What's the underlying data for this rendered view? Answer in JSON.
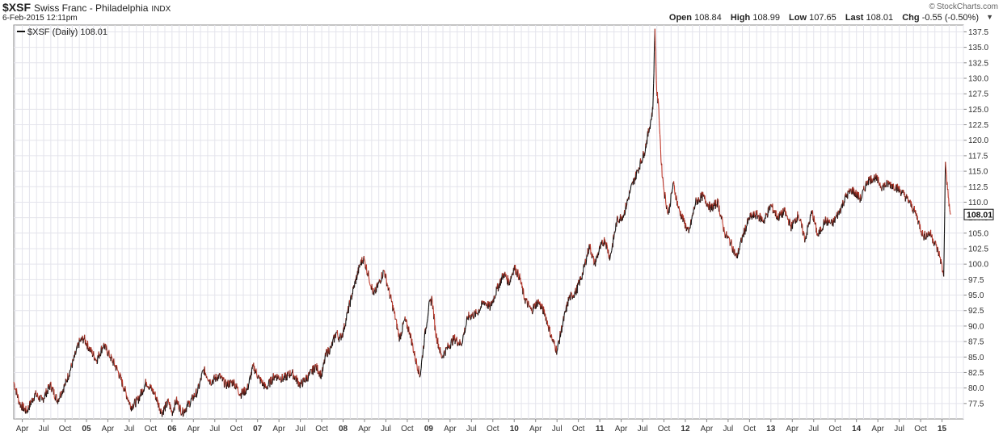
{
  "header": {
    "symbol": "$XSF",
    "name": "Swiss Franc - Philadelphia",
    "exchange": "INDX",
    "datetime": "6-Feb-2015 12:11pm",
    "source": "StockCharts.com",
    "copyright_symbol": "©",
    "ohlc": {
      "open_label": "Open",
      "open": "108.84",
      "high_label": "High",
      "high": "108.99",
      "low_label": "Low",
      "low": "107.65",
      "last_label": "Last",
      "last": "108.01",
      "chg_label": "Chg",
      "chg": "-0.55 (-0.50%)"
    },
    "menu_icon": "caret-down-icon"
  },
  "chart_data": {
    "type": "line",
    "legend": {
      "label": "$XSF (Daily) 108.01",
      "placement": "top-left"
    },
    "last_value_label": "108.01",
    "colors": {
      "up": "#111111",
      "down": "#c0392b",
      "grid": "#e4e4ec",
      "axis": "#888888"
    },
    "grid": true,
    "ylim": [
      75,
      138.6
    ],
    "xlim": [
      2004.15,
      2015.25
    ],
    "y_ticks": [
      "77.5",
      "80.0",
      "82.5",
      "85.0",
      "87.5",
      "90.0",
      "92.5",
      "95.0",
      "97.5",
      "100.0",
      "102.5",
      "105.0",
      "107.5",
      "110.0",
      "112.5",
      "115.0",
      "117.5",
      "120.0",
      "122.5",
      "125.0",
      "127.5",
      "130.0",
      "132.5",
      "135.0",
      "137.5"
    ],
    "x_ticks": [
      {
        "t": 2004.25,
        "label": "Apr",
        "bold": false
      },
      {
        "t": 2004.5,
        "label": "Jul",
        "bold": false
      },
      {
        "t": 2004.75,
        "label": "Oct",
        "bold": false
      },
      {
        "t": 2005.0,
        "label": "05",
        "bold": true
      },
      {
        "t": 2005.25,
        "label": "Apr",
        "bold": false
      },
      {
        "t": 2005.5,
        "label": "Jul",
        "bold": false
      },
      {
        "t": 2005.75,
        "label": "Oct",
        "bold": false
      },
      {
        "t": 2006.0,
        "label": "06",
        "bold": true
      },
      {
        "t": 2006.25,
        "label": "Apr",
        "bold": false
      },
      {
        "t": 2006.5,
        "label": "Jul",
        "bold": false
      },
      {
        "t": 2006.75,
        "label": "Oct",
        "bold": false
      },
      {
        "t": 2007.0,
        "label": "07",
        "bold": true
      },
      {
        "t": 2007.25,
        "label": "Apr",
        "bold": false
      },
      {
        "t": 2007.5,
        "label": "Jul",
        "bold": false
      },
      {
        "t": 2007.75,
        "label": "Oct",
        "bold": false
      },
      {
        "t": 2008.0,
        "label": "08",
        "bold": true
      },
      {
        "t": 2008.25,
        "label": "Apr",
        "bold": false
      },
      {
        "t": 2008.5,
        "label": "Jul",
        "bold": false
      },
      {
        "t": 2008.75,
        "label": "Oct",
        "bold": false
      },
      {
        "t": 2009.0,
        "label": "09",
        "bold": true
      },
      {
        "t": 2009.25,
        "label": "Apr",
        "bold": false
      },
      {
        "t": 2009.5,
        "label": "Jul",
        "bold": false
      },
      {
        "t": 2009.75,
        "label": "Oct",
        "bold": false
      },
      {
        "t": 2010.0,
        "label": "10",
        "bold": true
      },
      {
        "t": 2010.25,
        "label": "Apr",
        "bold": false
      },
      {
        "t": 2010.5,
        "label": "Jul",
        "bold": false
      },
      {
        "t": 2010.75,
        "label": "Oct",
        "bold": false
      },
      {
        "t": 2011.0,
        "label": "11",
        "bold": true
      },
      {
        "t": 2011.25,
        "label": "Apr",
        "bold": false
      },
      {
        "t": 2011.5,
        "label": "Jul",
        "bold": false
      },
      {
        "t": 2011.75,
        "label": "Oct",
        "bold": false
      },
      {
        "t": 2012.0,
        "label": "12",
        "bold": true
      },
      {
        "t": 2012.25,
        "label": "Apr",
        "bold": false
      },
      {
        "t": 2012.5,
        "label": "Jul",
        "bold": false
      },
      {
        "t": 2012.75,
        "label": "Oct",
        "bold": false
      },
      {
        "t": 2013.0,
        "label": "13",
        "bold": true
      },
      {
        "t": 2013.25,
        "label": "Apr",
        "bold": false
      },
      {
        "t": 2013.5,
        "label": "Jul",
        "bold": false
      },
      {
        "t": 2013.75,
        "label": "Oct",
        "bold": false
      },
      {
        "t": 2014.0,
        "label": "14",
        "bold": true
      },
      {
        "t": 2014.25,
        "label": "Apr",
        "bold": false
      },
      {
        "t": 2014.5,
        "label": "Jul",
        "bold": false
      },
      {
        "t": 2014.75,
        "label": "Oct",
        "bold": false
      },
      {
        "t": 2015.0,
        "label": "15",
        "bold": true
      }
    ],
    "series": [
      {
        "name": "$XSF (Daily)",
        "points": [
          [
            2004.15,
            81.0
          ],
          [
            2004.22,
            77.5
          ],
          [
            2004.3,
            76.2
          ],
          [
            2004.4,
            79.0
          ],
          [
            2004.48,
            78.0
          ],
          [
            2004.58,
            80.5
          ],
          [
            2004.66,
            78.0
          ],
          [
            2004.75,
            80.5
          ],
          [
            2004.85,
            84.5
          ],
          [
            2004.92,
            87.5
          ],
          [
            2004.97,
            88.0
          ],
          [
            2005.05,
            86.0
          ],
          [
            2005.12,
            84.5
          ],
          [
            2005.2,
            87.0
          ],
          [
            2005.28,
            85.0
          ],
          [
            2005.36,
            83.0
          ],
          [
            2005.44,
            80.0
          ],
          [
            2005.52,
            77.0
          ],
          [
            2005.6,
            78.0
          ],
          [
            2005.7,
            81.0
          ],
          [
            2005.8,
            79.0
          ],
          [
            2005.88,
            76.0
          ],
          [
            2005.96,
            77.8
          ],
          [
            2006.0,
            76.0
          ],
          [
            2006.05,
            78.0
          ],
          [
            2006.12,
            76.0
          ],
          [
            2006.2,
            77.5
          ],
          [
            2006.3,
            79.5
          ],
          [
            2006.37,
            83.0
          ],
          [
            2006.45,
            81.0
          ],
          [
            2006.55,
            82.0
          ],
          [
            2006.63,
            80.5
          ],
          [
            2006.72,
            81.0
          ],
          [
            2006.8,
            79.0
          ],
          [
            2006.88,
            79.8
          ],
          [
            2006.95,
            83.5
          ],
          [
            2007.02,
            81.5
          ],
          [
            2007.1,
            80.0
          ],
          [
            2007.2,
            82.0
          ],
          [
            2007.3,
            81.5
          ],
          [
            2007.4,
            82.5
          ],
          [
            2007.5,
            80.5
          ],
          [
            2007.6,
            82.0
          ],
          [
            2007.68,
            83.5
          ],
          [
            2007.75,
            82.0
          ],
          [
            2007.8,
            85.5
          ],
          [
            2007.86,
            86.5
          ],
          [
            2007.92,
            89.0
          ],
          [
            2007.96,
            88.0
          ],
          [
            2008.0,
            89.0
          ],
          [
            2008.05,
            92.0
          ],
          [
            2008.12,
            96.0
          ],
          [
            2008.2,
            100.0
          ],
          [
            2008.24,
            101.0
          ],
          [
            2008.3,
            98.0
          ],
          [
            2008.36,
            95.0
          ],
          [
            2008.42,
            97.0
          ],
          [
            2008.48,
            99.0
          ],
          [
            2008.53,
            96.0
          ],
          [
            2008.6,
            92.0
          ],
          [
            2008.66,
            88.0
          ],
          [
            2008.72,
            91.0
          ],
          [
            2008.78,
            89.0
          ],
          [
            2008.84,
            85.0
          ],
          [
            2008.9,
            82.0
          ],
          [
            2008.95,
            88.0
          ],
          [
            2009.0,
            93.0
          ],
          [
            2009.04,
            94.5
          ],
          [
            2009.08,
            89.0
          ],
          [
            2009.15,
            85.0
          ],
          [
            2009.22,
            86.5
          ],
          [
            2009.3,
            88.0
          ],
          [
            2009.38,
            87.0
          ],
          [
            2009.46,
            91.5
          ],
          [
            2009.56,
            92.0
          ],
          [
            2009.65,
            94.0
          ],
          [
            2009.72,
            93.0
          ],
          [
            2009.8,
            96.0
          ],
          [
            2009.88,
            98.5
          ],
          [
            2009.94,
            97.0
          ],
          [
            2010.0,
            99.5
          ],
          [
            2010.06,
            98.0
          ],
          [
            2010.12,
            94.5
          ],
          [
            2010.2,
            92.5
          ],
          [
            2010.28,
            94.0
          ],
          [
            2010.36,
            92.0
          ],
          [
            2010.44,
            88.0
          ],
          [
            2010.5,
            86.0
          ],
          [
            2010.56,
            90.0
          ],
          [
            2010.64,
            94.5
          ],
          [
            2010.72,
            95.5
          ],
          [
            2010.8,
            98.5
          ],
          [
            2010.88,
            103.0
          ],
          [
            2010.94,
            100.0
          ],
          [
            2011.0,
            102.5
          ],
          [
            2011.06,
            104.0
          ],
          [
            2011.12,
            101.0
          ],
          [
            2011.2,
            107.0
          ],
          [
            2011.28,
            108.0
          ],
          [
            2011.36,
            112.0
          ],
          [
            2011.44,
            115.0
          ],
          [
            2011.52,
            118.0
          ],
          [
            2011.58,
            122.0
          ],
          [
            2011.62,
            125.0
          ],
          [
            2011.645,
            138.0
          ],
          [
            2011.665,
            128.0
          ],
          [
            2011.69,
            125.0
          ],
          [
            2011.72,
            116.0
          ],
          [
            2011.75,
            112.0
          ],
          [
            2011.8,
            108.0
          ],
          [
            2011.86,
            113.0
          ],
          [
            2011.92,
            109.0
          ],
          [
            2011.98,
            107.0
          ],
          [
            2012.04,
            105.0
          ],
          [
            2012.12,
            110.0
          ],
          [
            2012.2,
            111.0
          ],
          [
            2012.3,
            109.0
          ],
          [
            2012.38,
            110.0
          ],
          [
            2012.46,
            105.0
          ],
          [
            2012.53,
            103.5
          ],
          [
            2012.6,
            101.0
          ],
          [
            2012.67,
            104.5
          ],
          [
            2012.75,
            107.5
          ],
          [
            2012.83,
            108.0
          ],
          [
            2012.92,
            107.0
          ],
          [
            2013.0,
            109.5
          ],
          [
            2013.08,
            107.5
          ],
          [
            2013.16,
            108.5
          ],
          [
            2013.24,
            106.0
          ],
          [
            2013.32,
            108.0
          ],
          [
            2013.4,
            104.0
          ],
          [
            2013.48,
            108.5
          ],
          [
            2013.55,
            104.5
          ],
          [
            2013.63,
            107.0
          ],
          [
            2013.72,
            106.5
          ],
          [
            2013.8,
            108.5
          ],
          [
            2013.88,
            111.0
          ],
          [
            2013.95,
            112.0
          ],
          [
            2014.05,
            110.5
          ],
          [
            2014.13,
            113.5
          ],
          [
            2014.22,
            114.0
          ],
          [
            2014.3,
            112.5
          ],
          [
            2014.38,
            113.0
          ],
          [
            2014.46,
            112.5
          ],
          [
            2014.54,
            111.5
          ],
          [
            2014.62,
            110.0
          ],
          [
            2014.7,
            108.0
          ],
          [
            2014.78,
            104.5
          ],
          [
            2014.86,
            105.0
          ],
          [
            2014.93,
            103.0
          ],
          [
            2014.98,
            101.0
          ],
          [
            2015.02,
            98.0
          ],
          [
            2015.04,
            116.5
          ],
          [
            2015.065,
            112.0
          ],
          [
            2015.09,
            108.8
          ],
          [
            2015.1,
            108.01
          ]
        ]
      }
    ]
  }
}
